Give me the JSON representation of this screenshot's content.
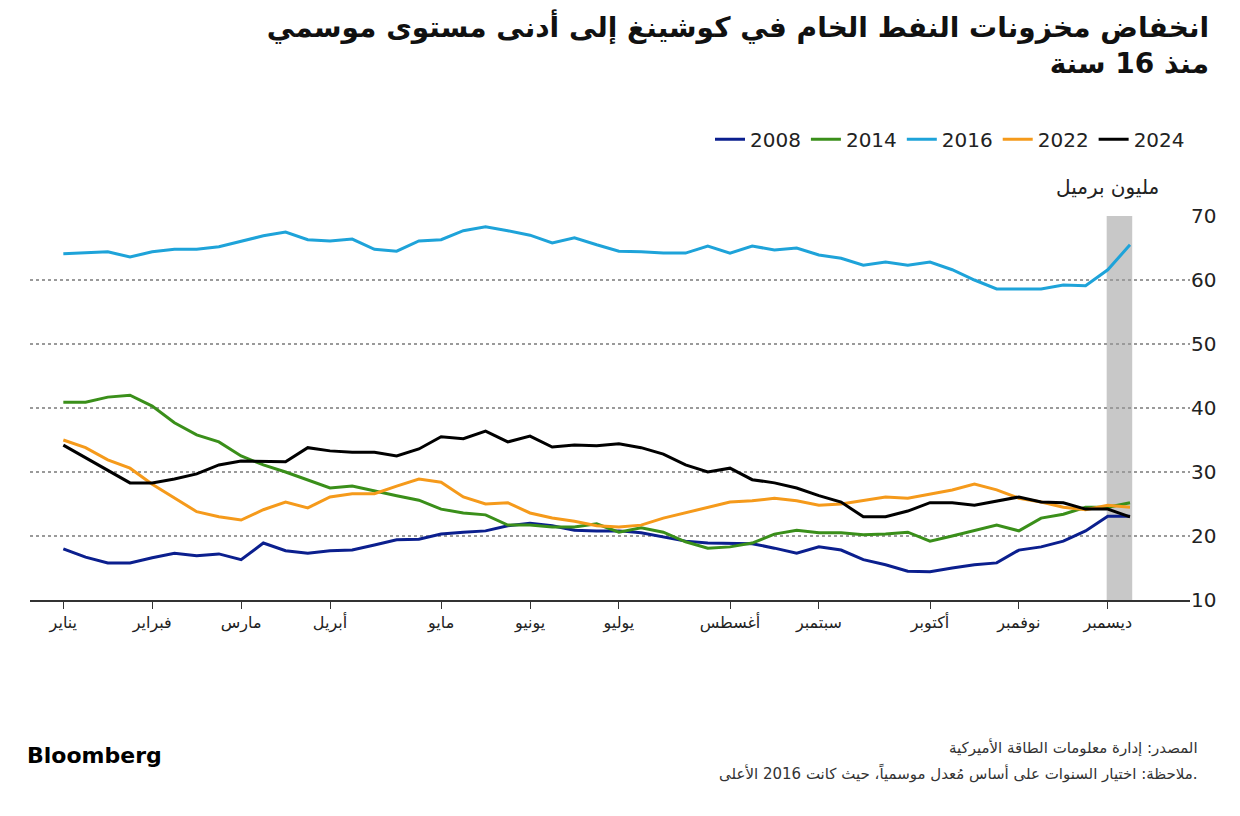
{
  "chart_data": {
    "type": "line",
    "title": "انخفاض مخزونات النفط الخام في كوشينغ إلى أدنى مستوى موسمي\nمنذ 16 سنة",
    "ylabel": "مليون برميل",
    "source": "المصدر: إدارة معلومات الطاقة الأميركية",
    "note": "ملاحظة: اختيار السنوات على أساس مُعدل موسمياً، حيث كانت 2016 الأعلى.",
    "credit": "Bloomberg",
    "categories": [
      "يناير",
      null,
      null,
      null,
      "فبراير",
      null,
      null,
      null,
      "مارس",
      null,
      null,
      null,
      "أبريل",
      null,
      null,
      null,
      null,
      "مايو",
      null,
      null,
      null,
      "يونيو",
      null,
      null,
      null,
      "يوليو",
      null,
      null,
      null,
      null,
      "أغسطس",
      null,
      null,
      null,
      "سبتمبر",
      null,
      null,
      null,
      null,
      "أكتوبر",
      null,
      null,
      null,
      "نوفمبر",
      null,
      null,
      null,
      "ديسمبر",
      null
    ],
    "series": [
      {
        "name": "2008",
        "color": "#0b1f8e",
        "values": [
          18.0,
          16.7,
          15.8,
          15.8,
          16.6,
          17.3,
          16.9,
          17.2,
          16.3,
          18.9,
          17.7,
          17.3,
          17.7,
          17.8,
          18.6,
          19.4,
          19.5,
          20.3,
          20.6,
          20.8,
          21.6,
          22.0,
          21.6,
          20.9,
          20.8,
          20.8,
          20.5,
          19.8,
          19.2,
          18.9,
          18.8,
          18.8,
          18.1,
          17.3,
          18.3,
          17.8,
          16.3,
          15.5,
          14.5,
          14.4,
          15.0,
          15.5,
          15.8,
          17.8,
          18.3,
          19.2,
          20.8,
          23.1,
          23.1
        ]
      },
      {
        "name": "2014",
        "color": "#3a8f1a",
        "values": [
          40.9,
          40.9,
          41.7,
          42.0,
          40.3,
          37.7,
          35.8,
          34.7,
          32.5,
          31.1,
          30.0,
          28.8,
          27.5,
          27.8,
          27.0,
          26.3,
          25.6,
          24.2,
          23.6,
          23.3,
          21.7,
          21.7,
          21.4,
          21.4,
          21.9,
          20.6,
          21.3,
          20.6,
          19.1,
          18.1,
          18.3,
          18.9,
          20.3,
          20.9,
          20.5,
          20.5,
          20.2,
          20.3,
          20.6,
          19.2,
          20.0,
          20.8,
          21.7,
          20.8,
          22.8,
          23.4,
          24.5,
          24.5,
          25.2
        ]
      },
      {
        "name": "2016",
        "color": "#1ea3d9",
        "values": [
          64.1,
          64.2,
          64.4,
          63.6,
          64.4,
          64.8,
          64.8,
          65.2,
          66.1,
          66.9,
          67.5,
          66.3,
          66.1,
          66.4,
          64.8,
          64.5,
          66.1,
          66.3,
          67.7,
          68.3,
          67.7,
          67.0,
          65.8,
          66.6,
          65.5,
          64.5,
          64.4,
          64.2,
          64.2,
          65.3,
          64.2,
          65.3,
          64.7,
          65.0,
          63.9,
          63.4,
          62.3,
          62.8,
          62.3,
          62.8,
          61.6,
          60.0,
          58.6,
          58.6,
          58.6,
          59.2,
          59.1,
          61.6,
          65.5
        ]
      },
      {
        "name": "2022",
        "color": "#f59a1b",
        "values": [
          35.0,
          33.8,
          31.9,
          30.6,
          28.1,
          25.9,
          23.8,
          23.0,
          22.5,
          24.1,
          25.3,
          24.4,
          26.1,
          26.6,
          26.6,
          27.8,
          28.9,
          28.4,
          26.1,
          25.0,
          25.2,
          23.6,
          22.8,
          22.3,
          21.6,
          21.4,
          21.7,
          22.8,
          23.6,
          24.5,
          25.3,
          25.5,
          25.9,
          25.5,
          24.8,
          25.0,
          25.6,
          26.1,
          25.9,
          26.6,
          27.2,
          28.1,
          27.2,
          25.9,
          25.3,
          24.5,
          24.1,
          24.8,
          24.5
        ]
      },
      {
        "name": "2024",
        "color": "#000000",
        "values": [
          34.2,
          32.2,
          30.3,
          28.3,
          28.3,
          28.9,
          29.7,
          31.1,
          31.7,
          31.6,
          31.6,
          33.8,
          33.3,
          33.1,
          33.1,
          32.5,
          33.6,
          35.5,
          35.2,
          36.4,
          34.7,
          35.6,
          33.9,
          34.2,
          34.1,
          34.4,
          33.8,
          32.8,
          31.1,
          30.0,
          30.6,
          28.8,
          28.3,
          27.5,
          26.3,
          25.3,
          23.0,
          23.0,
          23.9,
          25.2,
          25.2,
          24.8,
          25.5,
          26.1,
          25.3,
          25.2,
          24.2,
          24.2,
          23.0
        ]
      }
    ],
    "ylim": [
      10,
      70
    ],
    "yticks": [
      10,
      20,
      30,
      40,
      50,
      60,
      70
    ],
    "grid": true,
    "legend": "top-right"
  }
}
